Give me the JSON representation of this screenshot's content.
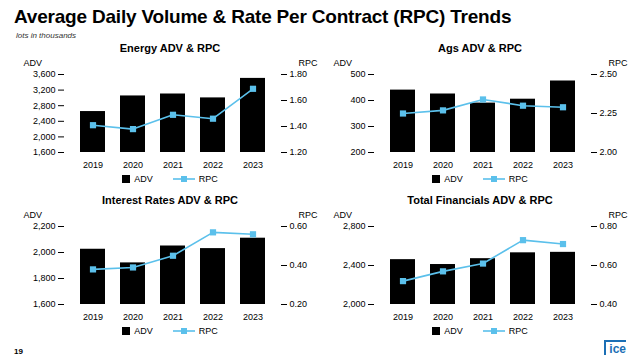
{
  "title": "Average Daily Volume & Rate Per Contract (RPC) Trends",
  "subtitle": "lots in thousands",
  "page_number": "19",
  "logo": "ice",
  "chart_data": [
    {
      "type": "bar",
      "title": "Energy ADV & RPC",
      "categories": [
        "2019",
        "2020",
        "2021",
        "2022",
        "2023"
      ],
      "series": [
        {
          "name": "ADV",
          "type": "bar",
          "color": "#000000",
          "values": [
            2650,
            3050,
            3100,
            3000,
            3500
          ]
        },
        {
          "name": "RPC",
          "type": "line",
          "axis": "y2",
          "marker": "square",
          "color": "#5bc0eb",
          "values": [
            1.41,
            1.38,
            1.49,
            1.46,
            1.69
          ]
        }
      ],
      "ylabel": "ADV",
      "y2label": "RPC",
      "ylim": [
        1600,
        3600
      ],
      "yticks": [
        {
          "value": 1600,
          "label": "1,600"
        },
        {
          "value": 2000,
          "label": "2,000"
        },
        {
          "value": 2400,
          "label": "2,400"
        },
        {
          "value": 2800,
          "label": "2,800"
        },
        {
          "value": 3200,
          "label": "3,200"
        },
        {
          "value": 3600,
          "label": "3,600"
        }
      ],
      "y2lim": [
        1.2,
        1.8
      ],
      "y2ticks": [
        {
          "value": 1.2,
          "label": "1.20"
        },
        {
          "value": 1.4,
          "label": "1.40"
        },
        {
          "value": 1.6,
          "label": "1.60"
        },
        {
          "value": 1.8,
          "label": "1.80"
        }
      ],
      "grid": false,
      "legend": "bottom"
    },
    {
      "type": "bar",
      "title": "Ags ADV & RPC",
      "categories": [
        "2019",
        "2020",
        "2021",
        "2022",
        "2023"
      ],
      "series": [
        {
          "name": "ADV",
          "type": "bar",
          "color": "#000000",
          "values": [
            440,
            425,
            390,
            405,
            475
          ]
        },
        {
          "name": "RPC",
          "type": "line",
          "axis": "y2",
          "marker": "square",
          "color": "#5bc0eb",
          "values": [
            2.25,
            2.27,
            2.34,
            2.3,
            2.29
          ]
        }
      ],
      "ylabel": "ADV",
      "y2label": "RPC",
      "ylim": [
        200,
        500
      ],
      "yticks": [
        200,
        300,
        400,
        500
      ],
      "y2lim": [
        2.0,
        2.5
      ],
      "y2ticks": [
        {
          "value": 2.0,
          "label": "2.00"
        },
        {
          "value": 2.25,
          "label": "2.25"
        },
        {
          "value": 2.5,
          "label": "2.50"
        }
      ],
      "grid": false,
      "legend": "bottom"
    },
    {
      "type": "bar",
      "title": "Interest Rates ADV & RPC",
      "categories": [
        "2019",
        "2020",
        "2021",
        "2022",
        "2023"
      ],
      "series": [
        {
          "name": "ADV",
          "type": "bar",
          "color": "#000000",
          "values": [
            2025,
            1920,
            2050,
            2030,
            2110
          ]
        },
        {
          "name": "RPC",
          "type": "line",
          "axis": "y2",
          "marker": "square",
          "color": "#5bc0eb",
          "values": [
            0.38,
            0.39,
            0.45,
            0.57,
            0.56
          ]
        }
      ],
      "ylabel": "ADV",
      "y2label": "RPC",
      "ylim": [
        1600,
        2200
      ],
      "yticks": [
        {
          "value": 1600,
          "label": "1,600"
        },
        {
          "value": 1800,
          "label": "1,800"
        },
        {
          "value": 2000,
          "label": "2,000"
        },
        {
          "value": 2200,
          "label": "2,200"
        }
      ],
      "y2lim": [
        0.2,
        0.6
      ],
      "y2ticks": [
        {
          "value": 0.2,
          "label": "0.20"
        },
        {
          "value": 0.4,
          "label": "0.40"
        },
        {
          "value": 0.6,
          "label": "0.60"
        }
      ],
      "grid": false,
      "legend": "bottom"
    },
    {
      "type": "bar",
      "title": "Total Financials ADV & RPC",
      "categories": [
        "2019",
        "2020",
        "2021",
        "2022",
        "2023"
      ],
      "series": [
        {
          "name": "ADV",
          "type": "bar",
          "color": "#000000",
          "values": [
            2460,
            2410,
            2470,
            2530,
            2535
          ]
        },
        {
          "name": "RPC",
          "type": "line",
          "axis": "y2",
          "marker": "square",
          "color": "#5bc0eb",
          "values": [
            0.52,
            0.57,
            0.61,
            0.73,
            0.71
          ]
        }
      ],
      "ylabel": "ADV",
      "y2label": "RPC",
      "ylim": [
        2000,
        2800
      ],
      "yticks": [
        {
          "value": 2000,
          "label": "2,000"
        },
        {
          "value": 2400,
          "label": "2,400"
        },
        {
          "value": 2800,
          "label": "2,800"
        }
      ],
      "y2lim": [
        0.4,
        0.8
      ],
      "y2ticks": [
        {
          "value": 0.4,
          "label": "0.40"
        },
        {
          "value": 0.6,
          "label": "0.60"
        },
        {
          "value": 0.8,
          "label": "0.80"
        }
      ],
      "grid": false,
      "legend": "bottom"
    }
  ]
}
